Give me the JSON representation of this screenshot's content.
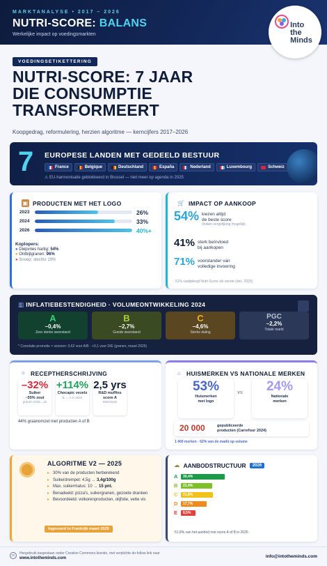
{
  "header": {
    "kicker": "MARKTANALYSE • 2017 – 2026",
    "title_a": "NUTRI-SCORE: ",
    "title_b": "BALANS",
    "subtitle": "Werkelijke impact op voedingsmarkten",
    "logo_l1": "Into",
    "logo_l2": "the",
    "logo_l3": "Minds"
  },
  "tag": "VOEDINGSETIKETTERING",
  "headline": [
    "NUTRI-SCORE: 7 JAAR",
    "DIE CONSUMPTIE",
    "TRANSFORMEERT"
  ],
  "lede": "Koopgedrag, reformulering, herzien algoritme — kerncijfers 2017–2026",
  "countries": {
    "count": "7",
    "title": "EUROPESE LANDEN MET GEDEELD BESTUUR",
    "note": "⚠ EU-harmonisatie geblokkeerd in Brussel — niet meer op agenda in 2025",
    "list": [
      {
        "name": "France",
        "c1": "#1f4fb8",
        "c2": "#ffffff",
        "c3": "#d8283a"
      },
      {
        "name": "Belgique",
        "c1": "#1b1b1b",
        "c2": "#f4cf1c",
        "c3": "#d8283a"
      },
      {
        "name": "Deutschland",
        "c1": "#1b1b1b",
        "c2": "#d8283a",
        "c3": "#f4cf1c"
      },
      {
        "name": "España",
        "c1": "#c8202e",
        "c2": "#f4cf1c",
        "c3": "#c8202e"
      },
      {
        "name": "Nederland",
        "c1": "#c8202e",
        "c2": "#ffffff",
        "c3": "#1f4fb8"
      },
      {
        "name": "Luxembourg",
        "c1": "#d8283a",
        "c2": "#ffffff",
        "c3": "#5ab0e6"
      },
      {
        "name": "Schweiz",
        "c1": "#d8283a",
        "c2": "#d8283a",
        "c3": "#d8283a"
      }
    ]
  },
  "products": {
    "title": "PRODUCTEN MET HET LOGO",
    "icon": "box-icon",
    "rows": [
      {
        "year": "2023",
        "pct": "26%",
        "fill": 0.65
      },
      {
        "year": "2024",
        "pct": "33%",
        "fill": 0.82
      },
      {
        "year": "2026",
        "pct": "40%+",
        "fill": 1.0
      }
    ],
    "pioneers_title": "Koplopers:",
    "pioneers": [
      {
        "icon": "salt-icon",
        "text": "Diepvries hartig: ",
        "val": "54%"
      },
      {
        "icon": "cereal-icon",
        "text": "Ontbijtgranen: ",
        "val": "96%"
      },
      {
        "icon": "candy-icon",
        "text": "Snoep: slechts 19%",
        "val": ""
      }
    ]
  },
  "impact": {
    "title": "IMPACT OP AANKOOP",
    "icon": "cart-icon",
    "stats": [
      {
        "n": "54%",
        "t1": "kiezen altijd",
        "t2": "de beste score",
        "s": "(indien vergelijking mogelijk)"
      },
      {
        "n": "41%",
        "t1": "sterk beïnvloed",
        "t2": "bij aankopen",
        "s": ""
      },
      {
        "n": "71%",
        "t1": "voorstander van",
        "t2": "volledige invoering",
        "s": ""
      }
    ],
    "foot": "51% raadpleegt Nutri-Score als eerste (dec. 2025)"
  },
  "inflation": {
    "title": "INFLATIEBESTENDIGHEID · VOLUMEONTWIKKELING 2024",
    "icon": "chart-icon",
    "items": [
      {
        "l": "A",
        "v": "–0,4%",
        "d": "Zeer sterke weerstand",
        "bg": "#12412f",
        "fg": "#3bd07a"
      },
      {
        "l": "B",
        "v": "–2,7%",
        "d": "Goede weerstand",
        "bg": "#3a4a23",
        "fg": "#a8d040"
      },
      {
        "l": "C",
        "v": "–4,6%",
        "d": "Sterke daling",
        "bg": "#5a4620",
        "fg": "#f0b12a"
      },
      {
        "l": "PGC",
        "v": "–2,2%",
        "d": "Totale markt",
        "bg": "#2c3858",
        "fg": "#b8c2d8"
      }
    ],
    "foot": "* Correlatie promotie × seizoen: 0,62 voor A/B · <0,1 voor D/E (granen, maart 2025)"
  },
  "recipes": {
    "title": "RECEPTHERSCHRIJVING",
    "icon": "recipe-icon",
    "items": [
      {
        "n": "–32%",
        "a": "Suiker",
        "a2": "~55% zout",
        "b": "granen 2015→22",
        "c": "#d8283a"
      },
      {
        "n": "+114%",
        "a": "Chocapic vezels",
        "a2": "",
        "b": "B → A in 2022",
        "c": "#1ea35a"
      },
      {
        "n": "2,5 yrs",
        "a": "R&D muffins",
        "a2": "score A",
        "b": "Intersnack",
        "c": "#0f1d3a"
      }
    ],
    "foot": "44% graanomzet met producten A of B"
  },
  "private": {
    "title": "HUISMERKEN VS NATIONALE MERKEN",
    "icon": "store-icon",
    "a": {
      "n": "53%",
      "t1": "Huismerken",
      "t2": "met logo"
    },
    "vs": "vs",
    "b": {
      "n": "24%",
      "t1": "Nationale",
      "t2": "merken"
    },
    "pl": {
      "n": "20 000",
      "t1": "gepubliceerde",
      "t2": "producten (Carrefour 2024)"
    },
    "foot": "1 400 merken · 62% van de markt op volume"
  },
  "algo": {
    "title": "ALGORITME V2 — 2025",
    "icon": "gear-icon",
    "items": [
      {
        "t": "30% van de producten herberekend",
        "b": ""
      },
      {
        "t": "Suikerdrempel: 4,5g → ",
        "b": "3,4g/100g"
      },
      {
        "t": "Max. suikermalus: 10 → ",
        "b": "15 pnt."
      },
      {
        "t": "Benadeeld: pizza's, suikergranen, gezoete dranken",
        "b": ""
      },
      {
        "t": "Bevoordeeld: volkorenproducten, olijfolie, vette vis",
        "b": ""
      }
    ],
    "badge": "Ingevoerd in Frankrijk maart 2025"
  },
  "offer": {
    "title": "AANBODSTRUCTUUR",
    "year": "2026",
    "icon": "offer-icon",
    "rows": [
      {
        "l": "A",
        "v": "30,4%",
        "c": "#1e9a4a",
        "w": 0.9
      },
      {
        "l": "B",
        "v": "21,4%",
        "c": "#7fbf2a",
        "w": 0.64
      },
      {
        "l": "C",
        "v": "21,8%",
        "c": "#f1c21b",
        "w": 0.65
      },
      {
        "l": "D",
        "v": "17,7%",
        "c": "#ef8a1d",
        "w": 0.53
      },
      {
        "l": "E",
        "v": "8,5%",
        "c": "#e0413a",
        "w": 0.3
      }
    ],
    "foot": "51,8% van het aanbod met score A of B in 2026"
  },
  "footer": {
    "l1": "Hergebruik toegestaan onder Creative Commons-licentie, met verplichte do-follow link naar",
    "l2": "www.intotheminds.com",
    "mail": "info@intotheminds.com",
    "cc": "cc"
  }
}
